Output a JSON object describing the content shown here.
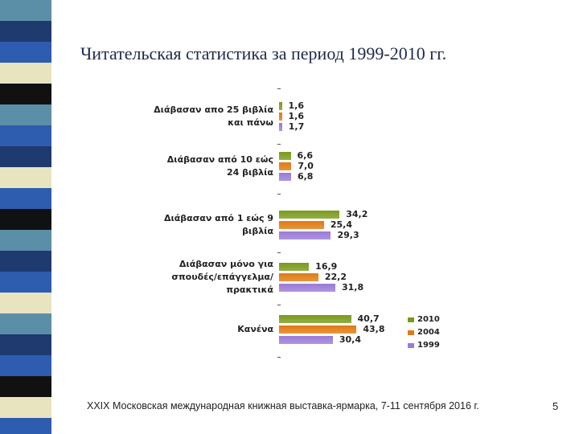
{
  "chart_data": {
    "type": "bar",
    "orientation": "horizontal",
    "title": "Читательская статистика за период 1999-2010 гг.",
    "categories": [
      "Διάβασαν απο 25 βιβλία και πάνω",
      "Διάβασαν από 10 εώς 24 βιβλία",
      "Διάβασαν από 1 εώς 9 βιβλία",
      "Διάβασαν μόνο για σπουδές/επάγγελμα/ πρακτικά",
      "Κανένα"
    ],
    "series": [
      {
        "name": "2010",
        "color": "#7a9a1a",
        "values": [
          1.6,
          6.6,
          34.2,
          16.9,
          40.7
        ],
        "value_labels": [
          "1,6",
          "6,6",
          "34,2",
          "16,9",
          "40,7"
        ]
      },
      {
        "name": "2004",
        "color": "#e07a10",
        "values": [
          1.6,
          7.0,
          25.4,
          22.2,
          43.8
        ],
        "value_labels": [
          "1,6",
          "7,0",
          "25,4",
          "22,2",
          "43,8"
        ]
      },
      {
        "name": "1999",
        "color": "#9a7ad6",
        "values": [
          1.7,
          6.8,
          29.3,
          31.8,
          30.4
        ],
        "value_labels": [
          "1,7",
          "6,8",
          "29,3",
          "31,8",
          "30,4"
        ]
      }
    ],
    "legend": "lower-right"
  },
  "footer": {
    "text": "XXIX Московская международная книжная выставка-ярмарка, 7-11 сентября 2016 г.",
    "page": "5"
  }
}
